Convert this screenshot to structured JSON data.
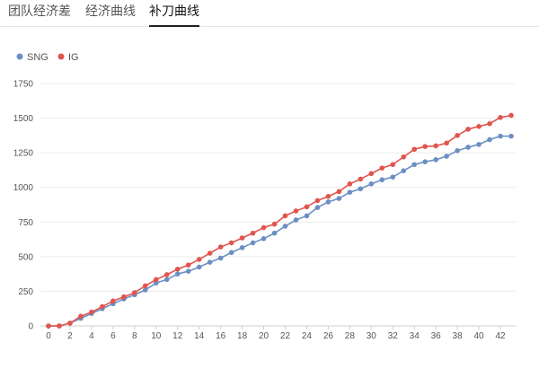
{
  "tabs": [
    {
      "label": "团队经济差",
      "active": false
    },
    {
      "label": "经济曲线",
      "active": false
    },
    {
      "label": "补刀曲线",
      "active": true
    }
  ],
  "colors": {
    "SNG": "#6b8fc3",
    "IG": "#e0554e"
  },
  "chart_data": {
    "type": "line",
    "title": "",
    "xlabel": "",
    "ylabel": "",
    "legend": "top-left",
    "grid": true,
    "xlim": [
      0,
      43
    ],
    "ylim": [
      0,
      1750
    ],
    "x_ticks": [
      0,
      2,
      4,
      6,
      8,
      10,
      12,
      14,
      16,
      18,
      20,
      22,
      24,
      26,
      28,
      30,
      32,
      34,
      36,
      38,
      40,
      42
    ],
    "y_ticks": [
      0,
      250,
      500,
      750,
      1000,
      1250,
      1500,
      1750
    ],
    "x": [
      0,
      1,
      2,
      3,
      4,
      5,
      6,
      7,
      8,
      9,
      10,
      11,
      12,
      13,
      14,
      15,
      16,
      17,
      18,
      19,
      20,
      21,
      22,
      23,
      24,
      25,
      26,
      27,
      28,
      29,
      30,
      31,
      32,
      33,
      34,
      35,
      36,
      37,
      38,
      39,
      40,
      41,
      42,
      43
    ],
    "series": [
      {
        "name": "SNG",
        "values": [
          0,
          0,
          20,
          55,
          90,
          125,
          160,
          195,
          225,
          260,
          310,
          335,
          375,
          395,
          425,
          460,
          490,
          530,
          565,
          600,
          630,
          670,
          720,
          765,
          795,
          855,
          895,
          920,
          965,
          990,
          1025,
          1055,
          1075,
          1120,
          1165,
          1185,
          1200,
          1225,
          1265,
          1290,
          1310,
          1345,
          1370,
          1370
        ]
      },
      {
        "name": "IG",
        "values": [
          0,
          0,
          20,
          70,
          100,
          140,
          180,
          210,
          240,
          290,
          335,
          370,
          410,
          440,
          480,
          525,
          570,
          600,
          635,
          670,
          710,
          735,
          795,
          830,
          860,
          905,
          935,
          970,
          1025,
          1060,
          1100,
          1140,
          1165,
          1220,
          1275,
          1295,
          1300,
          1320,
          1375,
          1420,
          1440,
          1460,
          1505,
          1520
        ]
      }
    ]
  }
}
